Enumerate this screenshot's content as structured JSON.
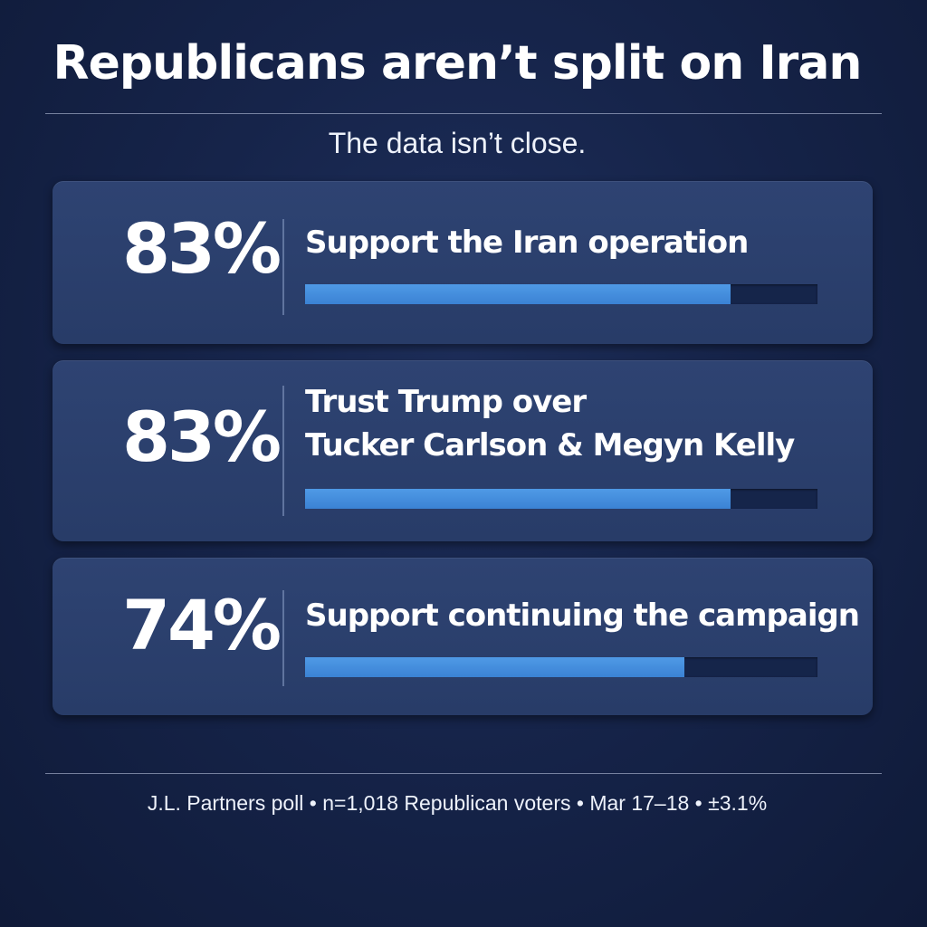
{
  "title": "Republicans aren’t split on Iran",
  "subtitle": "The data isn’t close.",
  "chart_data": {
    "type": "bar",
    "orientation": "horizontal",
    "title": "Republicans aren’t split on Iran",
    "subtitle": "The data isn’t close.",
    "xlim": [
      0,
      100
    ],
    "unit": "%",
    "items": [
      {
        "value": 83,
        "value_label": "83%",
        "label_lines": [
          "Support the Iran operation"
        ]
      },
      {
        "value": 83,
        "value_label": "83%",
        "label_lines": [
          "Trust Trump over",
          "Tucker Carlson & Megyn Kelly"
        ]
      },
      {
        "value": 74,
        "value_label": "74%",
        "label_lines": [
          "Support continuing the campaign"
        ]
      }
    ]
  },
  "footer": "J.L. Partners poll • n=1,018 Republican voters • Mar 17–18 • ±3.1%",
  "colors": {
    "background": "#16244a",
    "card": "#2b406c",
    "bar_fill": "#4a93e0",
    "bar_track": "#15254a",
    "text": "#ffffff"
  }
}
